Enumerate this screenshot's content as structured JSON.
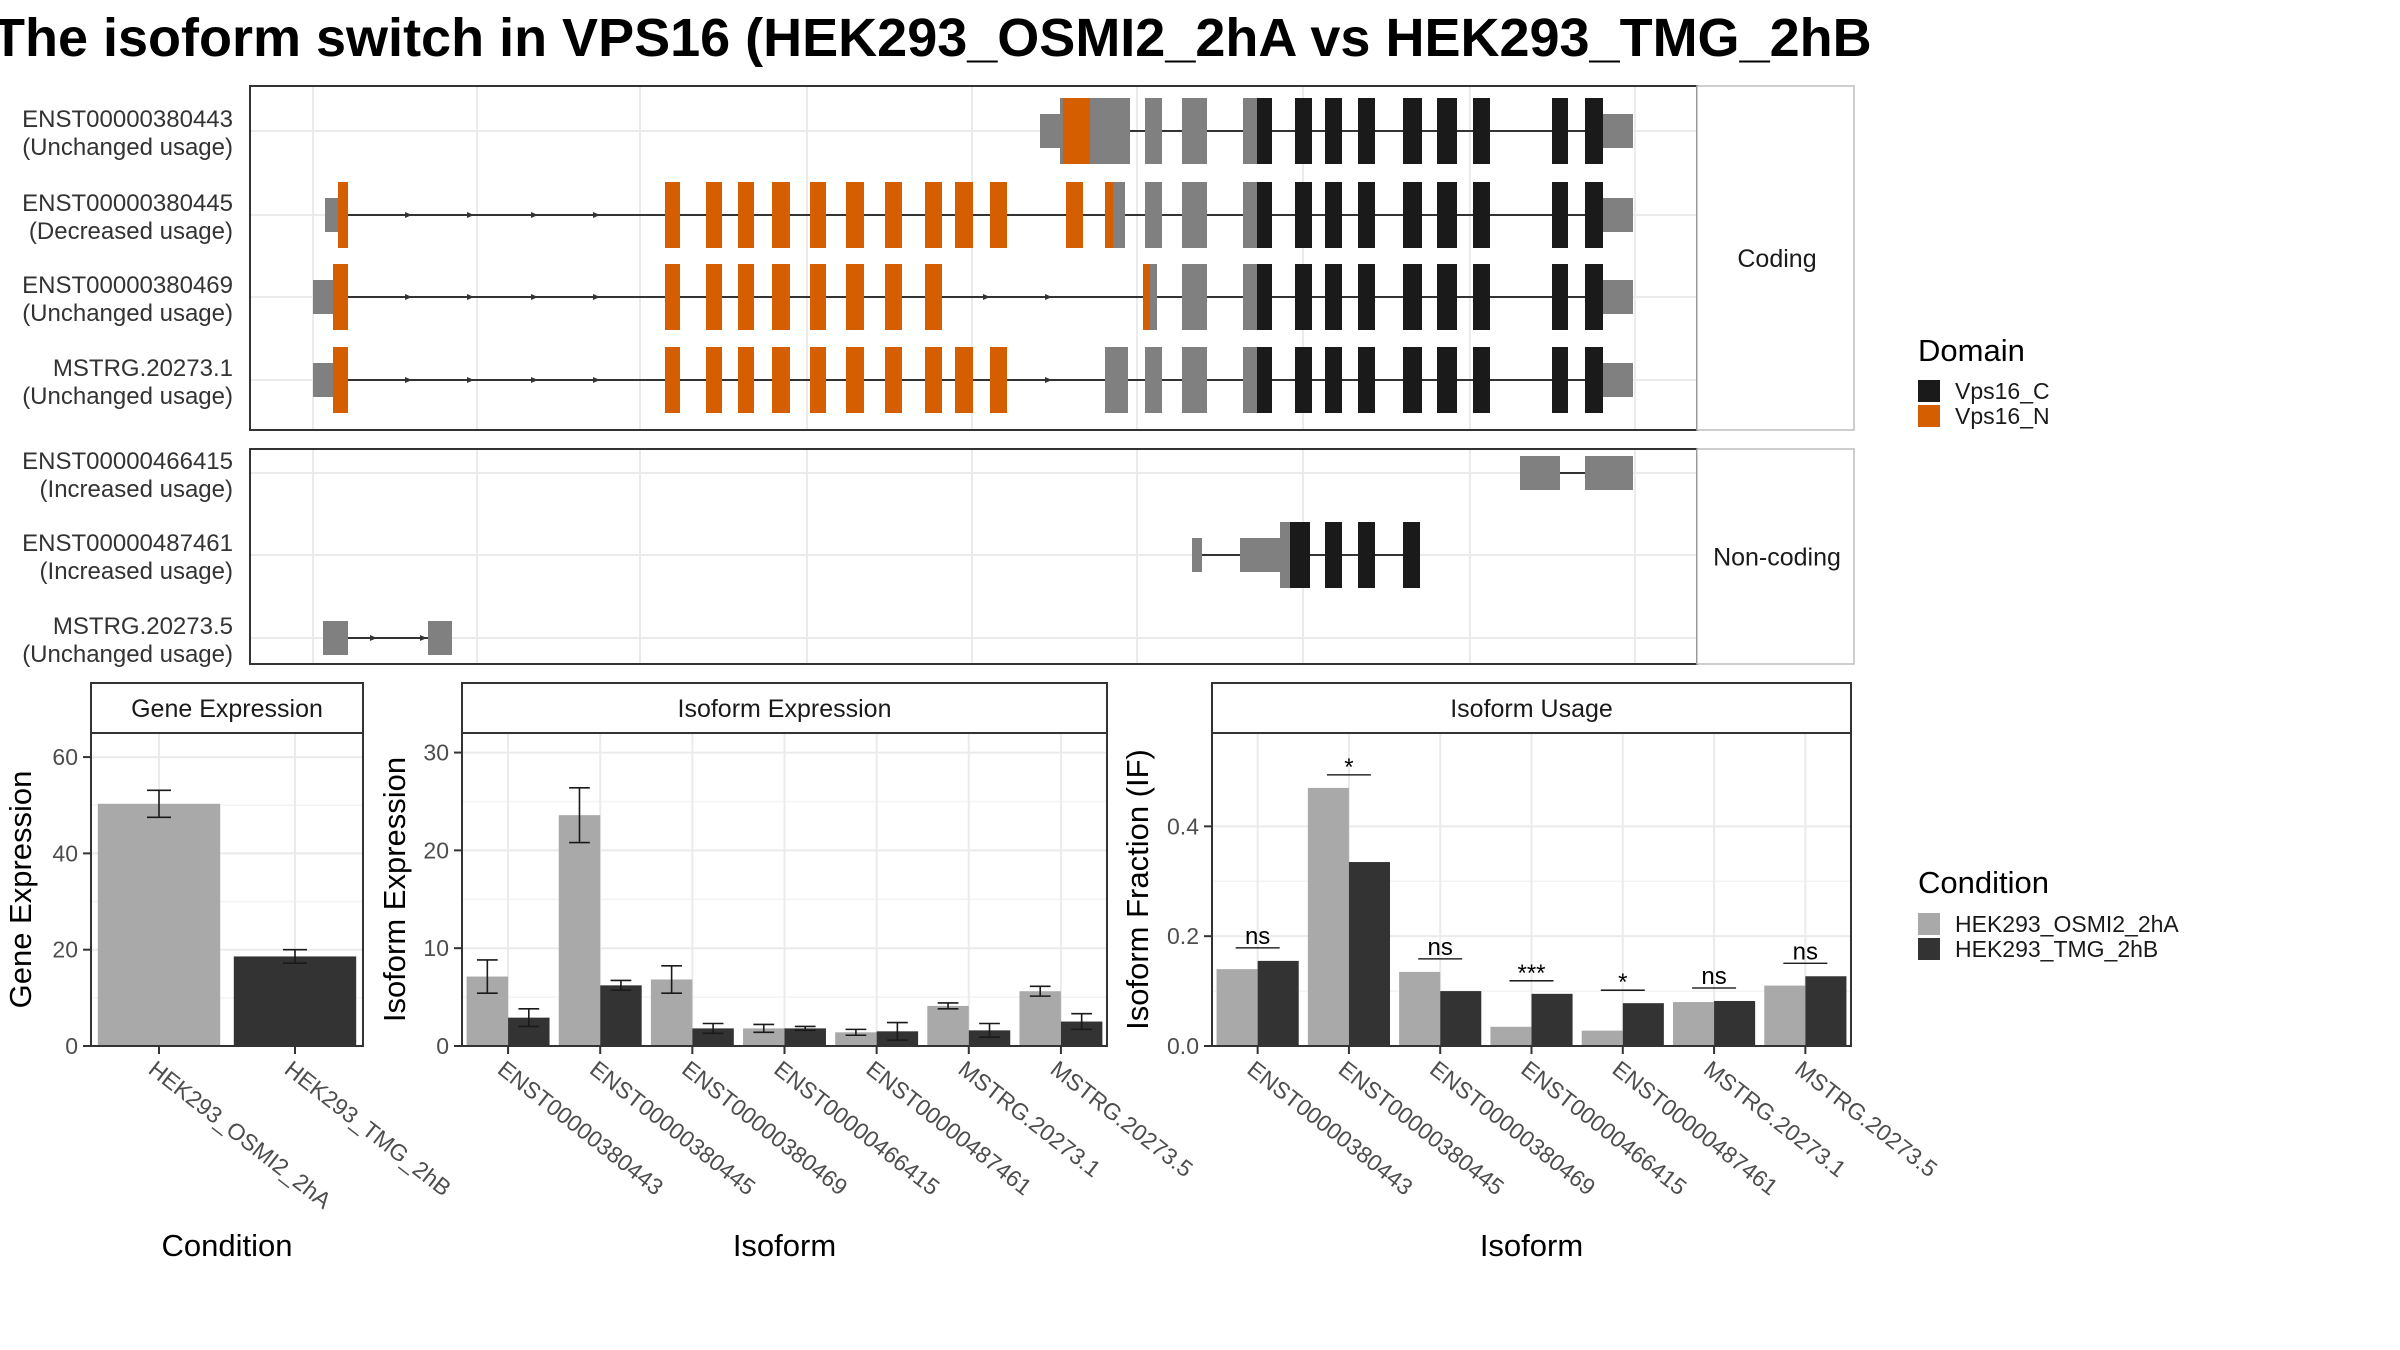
{
  "title": "The isoform switch in VPS16 (HEK293_OSMI2_2hA vs HEK293_TMG_2hB",
  "colors": {
    "vps16_c": "#1a1a1a",
    "vps16_n": "#d55e00",
    "exon_plain": "#808080",
    "cond_a": "#a9a9a9",
    "cond_b": "#333333"
  },
  "chart_data": [
    {
      "type": "gene-structure",
      "panels": [
        {
          "label": "Coding",
          "isoforms": [
            {
              "id": "ENST00000380443",
              "usage": "(Unchanged usage)"
            },
            {
              "id": "ENST00000380445",
              "usage": "(Decreased usage)"
            },
            {
              "id": "ENST00000380469",
              "usage": "(Unchanged usage)"
            },
            {
              "id": "MSTRG.20273.1",
              "usage": "(Unchanged usage)"
            }
          ]
        },
        {
          "label": "Non-coding",
          "isoforms": [
            {
              "id": "ENST00000466415",
              "usage": "(Increased usage)"
            },
            {
              "id": "ENST00000487461",
              "usage": "(Increased usage)"
            },
            {
              "id": "MSTRG.20273.5",
              "usage": "(Unchanged usage)"
            }
          ]
        }
      ],
      "legend": {
        "title": "Domain",
        "items": [
          "Vps16_C",
          "Vps16_N"
        ]
      }
    },
    {
      "type": "bar",
      "strip": "Gene Expression",
      "xlabel": "Condition",
      "ylabel": "Gene Expression",
      "categories": [
        "HEK293_OSMI2_2hA",
        "HEK293_TMG_2hB"
      ],
      "values": [
        50.3,
        18.6
      ],
      "errors": [
        2.8,
        1.4
      ],
      "ylim": [
        0,
        65
      ],
      "yticks": [
        "0",
        "20",
        "40",
        "60"
      ]
    },
    {
      "type": "bar",
      "strip": "Isoform Expression",
      "xlabel": "Isoform",
      "ylabel": "Isoform Expression",
      "categories": [
        "ENST00000380443",
        "ENST00000380445",
        "ENST00000380469",
        "ENST00000466415",
        "ENST00000487461",
        "MSTRG.20273.1",
        "MSTRG.20273.5"
      ],
      "series": [
        {
          "name": "HEK293_OSMI2_2hA",
          "values": [
            7.1,
            23.6,
            6.8,
            1.8,
            1.4,
            4.1,
            5.6
          ],
          "errors": [
            1.7,
            2.8,
            1.4,
            0.4,
            0.3,
            0.3,
            0.5
          ]
        },
        {
          "name": "HEK293_TMG_2hB",
          "values": [
            2.9,
            6.2,
            1.8,
            1.8,
            1.5,
            1.6,
            2.5
          ],
          "errors": [
            0.9,
            0.5,
            0.5,
            0.2,
            0.9,
            0.7,
            0.8
          ]
        }
      ],
      "ylim": [
        0,
        32
      ],
      "yticks": [
        "0",
        "10",
        "20",
        "30"
      ]
    },
    {
      "type": "bar",
      "strip": "Isoform Usage",
      "xlabel": "Isoform",
      "ylabel": "Isoform Fraction (IF)",
      "categories": [
        "ENST00000380443",
        "ENST00000380445",
        "ENST00000380469",
        "ENST00000466415",
        "ENST00000487461",
        "MSTRG.20273.1",
        "MSTRG.20273.5"
      ],
      "series": [
        {
          "name": "HEK293_OSMI2_2hA",
          "values": [
            0.14,
            0.47,
            0.135,
            0.035,
            0.028,
            0.08,
            0.11
          ]
        },
        {
          "name": "HEK293_TMG_2hB",
          "values": [
            0.155,
            0.335,
            0.1,
            0.095,
            0.078,
            0.082,
            0.127
          ]
        }
      ],
      "significance": [
        "ns",
        "*",
        "ns",
        "***",
        "*",
        "ns",
        "ns"
      ],
      "ylim": [
        0,
        0.57
      ],
      "yticks": [
        "0.0",
        "0.2",
        "0.4"
      ]
    }
  ],
  "legends": {
    "condition": {
      "title": "Condition",
      "items": [
        "HEK293_OSMI2_2hA",
        "HEK293_TMG_2hB"
      ]
    }
  }
}
